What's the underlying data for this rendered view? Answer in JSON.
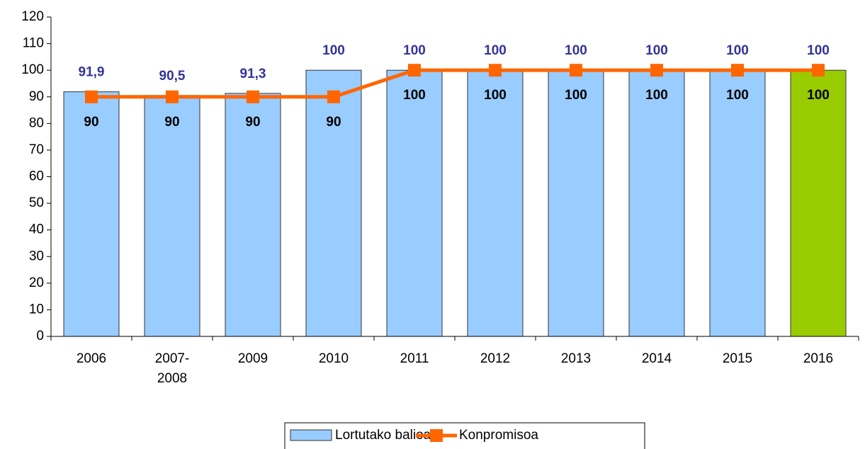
{
  "chart_data": {
    "type": "bar",
    "categories": [
      "2006",
      "2007-2008",
      "2009",
      "2010",
      "2011",
      "2012",
      "2013",
      "2014",
      "2015",
      "2016"
    ],
    "series": [
      {
        "name": "Lortutako balioa",
        "type": "bar",
        "color": "#99ccff",
        "colors": [
          "#99ccff",
          "#99ccff",
          "#99ccff",
          "#99ccff",
          "#99ccff",
          "#99ccff",
          "#99ccff",
          "#99ccff",
          "#99ccff",
          "#99cc00"
        ],
        "values": [
          91.9,
          90.5,
          91.3,
          100,
          100,
          100,
          100,
          100,
          100,
          100
        ],
        "value_labels": [
          "91,9",
          "90,5",
          "91,3",
          "100",
          "100",
          "100",
          "100",
          "100",
          "100",
          "100"
        ]
      },
      {
        "name": "Konpromisoa",
        "type": "line",
        "color": "#ff6600",
        "values": [
          90,
          90,
          90,
          90,
          100,
          100,
          100,
          100,
          100,
          100
        ]
      }
    ],
    "ylim": [
      0,
      120
    ],
    "yticks": [
      0,
      10,
      20,
      30,
      40,
      50,
      60,
      70,
      80,
      90,
      100,
      110,
      120
    ],
    "grid": false,
    "legend": "bottom"
  }
}
